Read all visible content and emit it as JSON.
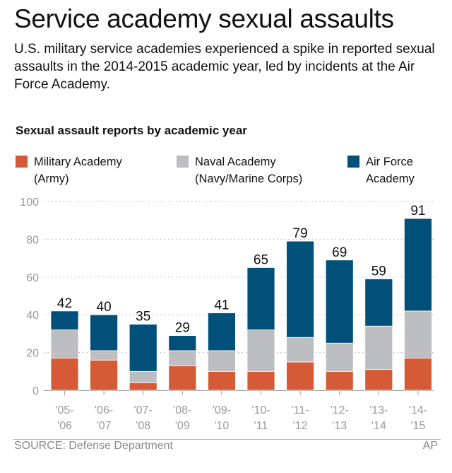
{
  "header": {
    "title": "Service academy sexual assaults",
    "subtitle": "U.S. military service academies experienced a spike in reported sexual assaults in the 2014-2015 academic year, led by incidents at the Air Force Academy."
  },
  "footer": {
    "source": "SOURCE: Defense Department",
    "credit": "AP"
  },
  "chart_data": {
    "type": "bar",
    "stacked": true,
    "title": "Sexual assault reports by academic year",
    "xlabel": "",
    "ylabel": "",
    "ylim": [
      0,
      100
    ],
    "yticks": [
      0,
      20,
      40,
      60,
      80,
      100
    ],
    "grid": true,
    "legend_placement": "top",
    "categories": [
      "'05-\n'06",
      "'06-\n'07",
      "'07-\n'08",
      "'08-\n'09",
      "'09-\n'10",
      "'10-\n'11",
      "'11-\n'12",
      "'12-\n'13",
      "'13-\n'14",
      "'14-\n'15"
    ],
    "series": [
      {
        "name": "Military Academy\n(Army)",
        "color": "#d55b37",
        "values": [
          17,
          16,
          4,
          13,
          10,
          10,
          15,
          10,
          11,
          17
        ]
      },
      {
        "name": "Naval Academy\n(Navy/Marine Corps)",
        "color": "#bdbec1",
        "values": [
          15,
          5,
          6,
          8,
          11,
          22,
          13,
          15,
          23,
          25
        ]
      },
      {
        "name": "Air Force\nAcademy",
        "color": "#00507a",
        "values": [
          10,
          19,
          25,
          8,
          20,
          33,
          51,
          44,
          25,
          49
        ]
      }
    ],
    "totals": [
      42,
      40,
      35,
      29,
      41,
      65,
      79,
      69,
      59,
      91
    ]
  }
}
